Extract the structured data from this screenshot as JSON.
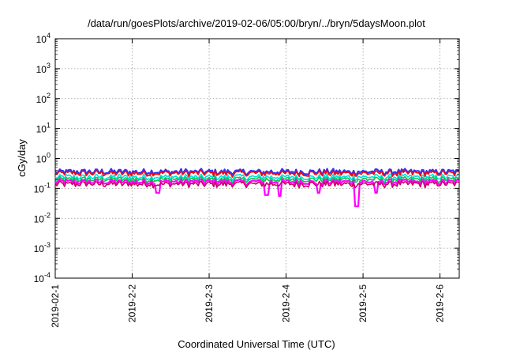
{
  "chart_data": {
    "type": "line",
    "title": "/data/run/goesPlots/archive/2019-02-06/05:00/bryn/../bryn/5daysMoon.plot",
    "xlabel": "Coordinated Universal Time (UTC)",
    "ylabel": "cGy/day",
    "y_scale": "log",
    "ylim": [
      0.0001,
      10000
    ],
    "y_ticks": [
      {
        "value": 0.0001,
        "base": "10",
        "exp": "-4"
      },
      {
        "value": 0.001,
        "base": "10",
        "exp": "-3"
      },
      {
        "value": 0.01,
        "base": "10",
        "exp": "-2"
      },
      {
        "value": 0.1,
        "base": "10",
        "exp": "-1"
      },
      {
        "value": 1,
        "base": "10",
        "exp": "0"
      },
      {
        "value": 10,
        "base": "10",
        "exp": "1"
      },
      {
        "value": 100,
        "base": "10",
        "exp": "2"
      },
      {
        "value": 1000,
        "base": "10",
        "exp": "3"
      },
      {
        "value": 10000,
        "base": "10",
        "exp": "4"
      }
    ],
    "x_range": [
      "2019-02-01T00:00",
      "2019-02-06T06:00"
    ],
    "x_ticks": [
      {
        "date": "2019-02-01T00:00",
        "label": "2019-02-1"
      },
      {
        "date": "2019-02-02T00:00",
        "label": "2019-2-2"
      },
      {
        "date": "2019-02-03T00:00",
        "label": "2019-2-3"
      },
      {
        "date": "2019-02-04T00:00",
        "label": "2019-2-4"
      },
      {
        "date": "2019-02-05T00:00",
        "label": "2019-2-5"
      },
      {
        "date": "2019-02-06T00:00",
        "label": "2019-2-6"
      }
    ],
    "grid": true,
    "legend": "none",
    "series": [
      {
        "color": "#3333ff",
        "base_value": 0.36,
        "dips": []
      },
      {
        "color": "#ff0000",
        "base_value": 0.32,
        "dips": []
      },
      {
        "color": "#00dddd",
        "base_value": 0.24,
        "dips": []
      },
      {
        "color": "#00cc44",
        "base_value": 0.2,
        "dips": []
      },
      {
        "color": "#ff00ff",
        "base_value": 0.165,
        "dips": [
          {
            "date": "2019-02-02T08:00",
            "value": 0.07
          },
          {
            "date": "2019-02-03T18:00",
            "value": 0.06
          },
          {
            "date": "2019-02-03T22:00",
            "value": 0.055
          },
          {
            "date": "2019-02-04T10:00",
            "value": 0.07
          },
          {
            "date": "2019-02-04T22:00",
            "value": 0.025
          },
          {
            "date": "2019-02-05T04:00",
            "value": 0.07
          }
        ]
      },
      {
        "color": "#cc0066",
        "base_value": 0.14,
        "dips": []
      }
    ]
  }
}
